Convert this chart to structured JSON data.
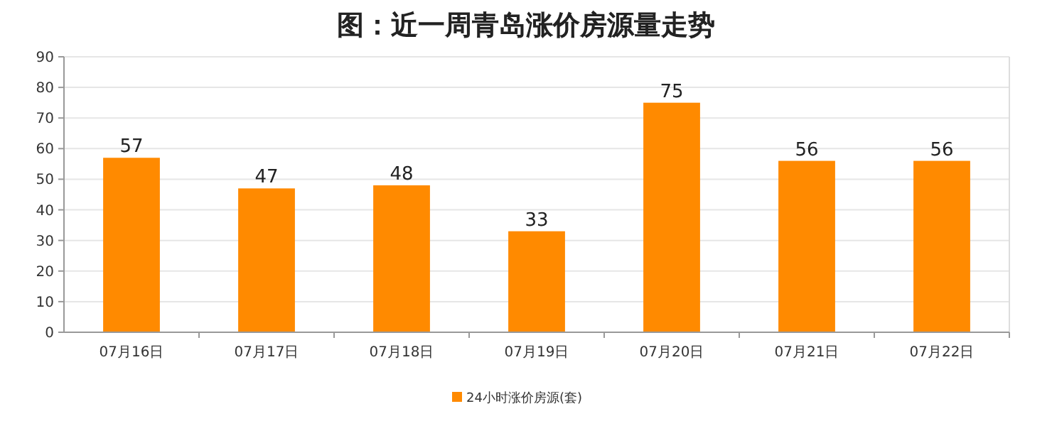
{
  "chart_data": {
    "type": "bar",
    "title": "图：近一周青岛涨价房源量走势",
    "categories": [
      "07月16日",
      "07月17日",
      "07月18日",
      "07月19日",
      "07月20日",
      "07月21日",
      "07月22日"
    ],
    "series": [
      {
        "name": "24小时涨价房源(套)",
        "color": "#ff8a00",
        "values": [
          57,
          47,
          48,
          33,
          75,
          56,
          56
        ]
      }
    ],
    "ylim": [
      0,
      90
    ],
    "yticks": [
      0,
      10,
      20,
      30,
      40,
      50,
      60,
      70,
      80,
      90
    ],
    "grid": "y",
    "legend": "bottom",
    "data_labels": true
  }
}
